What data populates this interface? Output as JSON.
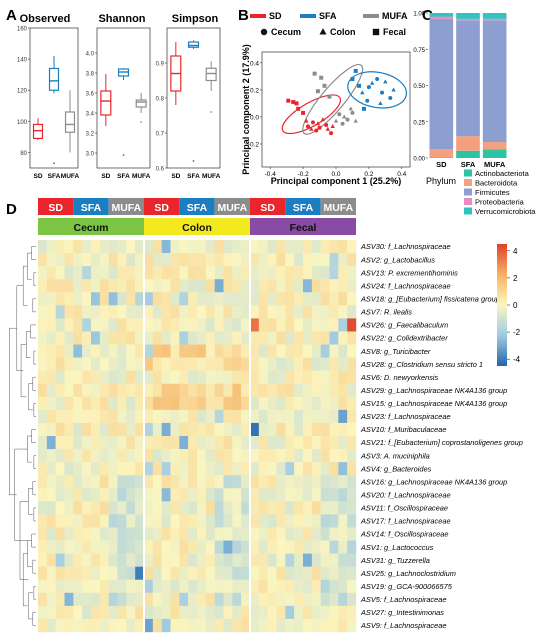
{
  "panel_letters": [
    "A",
    "B",
    "C",
    "D"
  ],
  "colors": {
    "SD": "#e8262b",
    "SFA": "#1b7ec2",
    "MUFA": "#8c8c8c",
    "Cecum": "#7cc443",
    "Colon": "#f2ea1f",
    "Fecal": "#8a4ba5"
  },
  "chart_data": [
    {
      "type": "box",
      "title": "Observed",
      "categories": [
        "SD",
        "SFA",
        "MUFA"
      ],
      "ylim": [
        70,
        160
      ],
      "yticks": [
        "80",
        "100",
        "120",
        "140",
        "160"
      ],
      "boxes": [
        {
          "name": "SD",
          "min": 88,
          "q1": 89,
          "median": 94,
          "q3": 98,
          "max": 102,
          "outliers": []
        },
        {
          "name": "SFA",
          "min": 118,
          "q1": 120,
          "median": 126,
          "q3": 134,
          "max": 142,
          "outliers": [
            73
          ]
        },
        {
          "name": "MUFA",
          "min": 80,
          "q1": 93,
          "median": 98,
          "q3": 106,
          "max": 120,
          "outliers": []
        }
      ]
    },
    {
      "type": "box",
      "title": "Shannon",
      "categories": [
        "SD",
        "SFA",
        "MUFA"
      ],
      "ylim": [
        2.85,
        4.25
      ],
      "yticks": [
        "3.0",
        "3.2",
        "3.4",
        "3.6",
        "3.8",
        "4.0"
      ],
      "boxes": [
        {
          "name": "SD",
          "min": 3.27,
          "q1": 3.38,
          "median": 3.52,
          "q3": 3.62,
          "max": 3.79,
          "outliers": []
        },
        {
          "name": "SFA",
          "min": 3.73,
          "q1": 3.77,
          "median": 3.81,
          "q3": 3.84,
          "max": 3.85,
          "outliers": [
            2.98
          ]
        },
        {
          "name": "MUFA",
          "min": 3.4,
          "q1": 3.46,
          "median": 3.51,
          "q3": 3.53,
          "max": 3.6,
          "outliers": [
            3.31
          ]
        }
      ]
    },
    {
      "type": "box",
      "title": "Simpson",
      "categories": [
        "SD",
        "SFA",
        "MUFA"
      ],
      "ylim": [
        0.6,
        1.0
      ],
      "yticks": [
        "0.6",
        "0.7",
        "0.8",
        "0.9"
      ],
      "boxes": [
        {
          "name": "SD",
          "min": 0.78,
          "q1": 0.82,
          "median": 0.87,
          "q3": 0.92,
          "max": 0.96,
          "outliers": []
        },
        {
          "name": "SFA",
          "min": 0.94,
          "q1": 0.945,
          "median": 0.95,
          "q3": 0.96,
          "max": 0.965,
          "outliers": [
            0.62
          ]
        },
        {
          "name": "MUFA",
          "min": 0.82,
          "q1": 0.85,
          "median": 0.87,
          "q3": 0.885,
          "max": 0.905,
          "outliers": [
            0.76
          ]
        }
      ]
    },
    {
      "type": "scatter",
      "xlabel": "Principal component 1 (25.2%)",
      "ylabel": "Principal component 2 (17.9%)",
      "xlim": [
        -0.45,
        0.45
      ],
      "ylim": [
        -0.37,
        0.48
      ],
      "xticks": [
        "-0.4",
        "-0.2",
        "0.0",
        "0.2",
        "0.4"
      ],
      "yticks": [
        "-0.2",
        "0.0",
        "0.2",
        "0.4"
      ],
      "legend_groups": [
        "SD",
        "SFA",
        "MUFA"
      ],
      "legend_sites": [
        "Cecum",
        "Colon",
        "Fecal"
      ],
      "points": [
        {
          "g": "SD",
          "s": "Cecum",
          "x": -0.14,
          "y": -0.04
        },
        {
          "g": "SD",
          "s": "Cecum",
          "x": -0.1,
          "y": -0.08
        },
        {
          "g": "SD",
          "s": "Cecum",
          "x": -0.06,
          "y": -0.06
        },
        {
          "g": "SD",
          "s": "Cecum",
          "x": -0.12,
          "y": -0.1
        },
        {
          "g": "SD",
          "s": "Cecum",
          "x": -0.03,
          "y": -0.12
        },
        {
          "g": "SD",
          "s": "Cecum",
          "x": -0.17,
          "y": -0.07
        },
        {
          "g": "SD",
          "s": "Colon",
          "x": -0.08,
          "y": -0.02
        },
        {
          "g": "SD",
          "s": "Colon",
          "x": -0.15,
          "y": -0.09
        },
        {
          "g": "SD",
          "s": "Colon",
          "x": -0.05,
          "y": -0.09
        },
        {
          "g": "SD",
          "s": "Colon",
          "x": -0.11,
          "y": -0.05
        },
        {
          "g": "SD",
          "s": "Colon",
          "x": -0.18,
          "y": -0.03
        },
        {
          "g": "SD",
          "s": "Colon",
          "x": -0.02,
          "y": -0.07
        },
        {
          "g": "SD",
          "s": "Fecal",
          "x": -0.29,
          "y": 0.12
        },
        {
          "g": "SD",
          "s": "Fecal",
          "x": -0.26,
          "y": 0.11
        },
        {
          "g": "SD",
          "s": "Fecal",
          "x": -0.23,
          "y": 0.06
        },
        {
          "g": "SD",
          "s": "Fecal",
          "x": -0.2,
          "y": 0.03
        },
        {
          "g": "SD",
          "s": "Fecal",
          "x": -0.24,
          "y": 0.1
        },
        {
          "g": "SFA",
          "s": "Cecum",
          "x": 0.2,
          "y": 0.22
        },
        {
          "g": "SFA",
          "s": "Cecum",
          "x": 0.28,
          "y": 0.18
        },
        {
          "g": "SFA",
          "s": "Cecum",
          "x": 0.25,
          "y": 0.28
        },
        {
          "g": "SFA",
          "s": "Cecum",
          "x": 0.33,
          "y": 0.14
        },
        {
          "g": "SFA",
          "s": "Cecum",
          "x": 0.19,
          "y": 0.12
        },
        {
          "g": "SFA",
          "s": "Colon",
          "x": 0.22,
          "y": 0.25
        },
        {
          "g": "SFA",
          "s": "Colon",
          "x": 0.3,
          "y": 0.26
        },
        {
          "g": "SFA",
          "s": "Colon",
          "x": 0.27,
          "y": 0.1
        },
        {
          "g": "SFA",
          "s": "Colon",
          "x": 0.35,
          "y": 0.2
        },
        {
          "g": "SFA",
          "s": "Colon",
          "x": 0.16,
          "y": 0.18
        },
        {
          "g": "SFA",
          "s": "Fecal",
          "x": 0.12,
          "y": 0.34
        },
        {
          "g": "SFA",
          "s": "Fecal",
          "x": 0.1,
          "y": 0.28
        },
        {
          "g": "SFA",
          "s": "Fecal",
          "x": 0.14,
          "y": 0.23
        },
        {
          "g": "SFA",
          "s": "Fecal",
          "x": 0.17,
          "y": 0.06
        },
        {
          "g": "MUFA",
          "s": "Cecum",
          "x": 0.02,
          "y": 0.02
        },
        {
          "g": "MUFA",
          "s": "Cecum",
          "x": 0.07,
          "y": -0.02
        },
        {
          "g": "MUFA",
          "s": "Cecum",
          "x": 0.1,
          "y": 0.03
        },
        {
          "g": "MUFA",
          "s": "Cecum",
          "x": 0.04,
          "y": -0.05
        },
        {
          "g": "MUFA",
          "s": "Colon",
          "x": 0.05,
          "y": 0.0
        },
        {
          "g": "MUFA",
          "s": "Colon",
          "x": 0.12,
          "y": -0.03
        },
        {
          "g": "MUFA",
          "s": "Colon",
          "x": 0.0,
          "y": -0.03
        },
        {
          "g": "MUFA",
          "s": "Colon",
          "x": 0.09,
          "y": 0.06
        },
        {
          "g": "MUFA",
          "s": "Fecal",
          "x": -0.13,
          "y": 0.32
        },
        {
          "g": "MUFA",
          "s": "Fecal",
          "x": -0.09,
          "y": 0.29
        },
        {
          "g": "MUFA",
          "s": "Fecal",
          "x": -0.07,
          "y": 0.23
        },
        {
          "g": "MUFA",
          "s": "Fecal",
          "x": -0.04,
          "y": 0.15
        },
        {
          "g": "MUFA",
          "s": "Fecal",
          "x": -0.11,
          "y": 0.19
        }
      ],
      "ellipses": [
        {
          "g": "SD",
          "cx": -0.15,
          "cy": 0.02,
          "rx": 0.2,
          "ry": 0.085,
          "angle": -30
        },
        {
          "g": "MUFA",
          "cx": -0.02,
          "cy": 0.13,
          "rx": 0.27,
          "ry": 0.085,
          "angle": -50
        },
        {
          "g": "SFA",
          "cx": 0.25,
          "cy": 0.2,
          "rx": 0.18,
          "ry": 0.13,
          "angle": 10
        }
      ]
    },
    {
      "type": "stacked-bar",
      "categories": [
        "SD",
        "SFA",
        "MUFA"
      ],
      "ylim": [
        0,
        1
      ],
      "yticks": [
        "0.00",
        "0.25",
        "0.50",
        "0.75",
        "1.00"
      ],
      "legend_title": "Phylum",
      "series": [
        {
          "name": "Actinobacteriota",
          "color": "#2ec4a3",
          "values": [
            0.005,
            0.05,
            0.06
          ]
        },
        {
          "name": "Bacteroidota",
          "color": "#f4a07e",
          "values": [
            0.055,
            0.1,
            0.05
          ]
        },
        {
          "name": "Firmicutes",
          "color": "#8d9fd0",
          "values": [
            0.9,
            0.8,
            0.84
          ]
        },
        {
          "name": "Proteobacteria",
          "color": "#e98ac2",
          "values": [
            0.015,
            0.01,
            0.01
          ]
        },
        {
          "name": "Verrucomicrobiota",
          "color": "#33c2c0",
          "values": [
            0.025,
            0.04,
            0.04
          ]
        }
      ]
    },
    {
      "type": "heatmap",
      "groups": [
        "SD",
        "SFA",
        "MUFA"
      ],
      "sites": [
        "Cecum",
        "Colon",
        "Fecal"
      ],
      "colorbar_ticks": [
        "4",
        "2",
        "0",
        "-2",
        "-4"
      ],
      "zlim": [
        -4.5,
        4.5
      ],
      "samples_per_group": 4,
      "rows": [
        "ASV30: f_Lachnospiraceae",
        "ASV2: g_Lactobacillus",
        "ASV13: P. excrementihominis",
        "ASV24: f_Lachnospiraceae",
        "ASV18: g_[Eubacterium] fissicatena group",
        "ASV7: R. ilealis",
        "ASV26: g_Faecalibaculum",
        "ASV22: g_Colidextribacter",
        "ASV8: g_Turicibacter",
        "ASV28: g_Clostridium sensu stricto 1",
        "ASV6: D. newyorkensis",
        "ASV29: g_Lachnospiraceae NK4A136 group",
        "ASV15: g_Lachnospiraceae NK4A136 group",
        "ASV23: f_Lachnospiraceae",
        "ASV10: f_Muribaculaceae",
        "ASV21: f_[Eubacterium] coprostanoligenes group",
        "ASV3: A. muciniphila",
        "ASV4: g_Bacteroides",
        "ASV16: g_Lachnospiraceae NK4A136 group",
        "ASV20: f_Lachnospiraceae",
        "ASV11: f_Oscillospiraceae",
        "ASV17: f_Lachnospiraceae",
        "ASV14: f_Oscillospiraceae",
        "ASV1: g_Lactococcus",
        "ASV31: g_Tuzzerella",
        "ASV25: g_Lachnoclostridium",
        "ASV19: g_GCA-900066575",
        "ASV5: f_Lachnospiraceae",
        "ASV27: g_Intestinimonas",
        "ASV9: f_Lachnospiraceae"
      ]
    }
  ]
}
